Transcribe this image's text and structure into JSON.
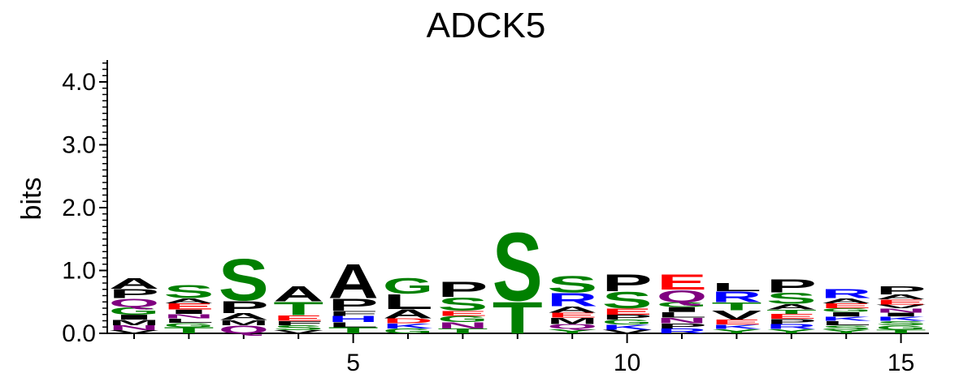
{
  "chart_data": {
    "type": "sequence-logo",
    "title": "ADCK5",
    "ylabel": "bits",
    "xlabel": "",
    "ylim": [
      0,
      4.3
    ],
    "yticks": [
      0.0,
      1.0,
      2.0,
      3.0,
      4.0
    ],
    "ytick_labels": [
      "0.0",
      "1.0",
      "2.0",
      "3.0",
      "4.0"
    ],
    "xticks": [
      5,
      10,
      15
    ],
    "xtick_labels": [
      "5",
      "10",
      "15"
    ],
    "x_range": [
      0.5,
      16.0
    ],
    "colors": {
      "A": "#000000",
      "L": "#000000",
      "P": "#000000",
      "V": "#000000",
      "I": "#000000",
      "M": "#000000",
      "F": "#000000",
      "W": "#000000",
      "S": "#008000",
      "T": "#008000",
      "G": "#008000",
      "Y": "#008000",
      "C": "#008000",
      "R": "#0000ff",
      "K": "#0000ff",
      "H": "#0000ff",
      "D": "#ff0000",
      "E": "#ff0000",
      "N": "#800080",
      "Q": "#800080"
    },
    "positions": [
      {
        "pos": 1,
        "letters": [
          [
            "V",
            0.05
          ],
          [
            "N",
            0.08
          ],
          [
            "M",
            0.09
          ],
          [
            "I",
            0.08
          ],
          [
            "G",
            0.12
          ],
          [
            "Q",
            0.14
          ],
          [
            "P",
            0.15
          ],
          [
            "A",
            0.17
          ]
        ]
      },
      {
        "pos": 2,
        "letters": [
          [
            "T",
            0.1
          ],
          [
            "G",
            0.07
          ],
          [
            "L",
            0.07
          ],
          [
            "N",
            0.07
          ],
          [
            "I",
            0.07
          ],
          [
            "E",
            0.1
          ],
          [
            "A",
            0.08
          ],
          [
            "S",
            0.22
          ]
        ]
      },
      {
        "pos": 3,
        "letters": [
          [
            "Q",
            0.13
          ],
          [
            "M",
            0.08
          ],
          [
            "A",
            0.11
          ],
          [
            "P",
            0.2
          ],
          [
            "S",
            0.69
          ]
        ]
      },
      {
        "pos": 4,
        "letters": [
          [
            "V",
            0.05
          ],
          [
            "S",
            0.08
          ],
          [
            "F",
            0.07
          ],
          [
            "E",
            0.09
          ],
          [
            "T",
            0.22
          ],
          [
            "A",
            0.25
          ]
        ]
      },
      {
        "pos": 5,
        "letters": [
          [
            "T",
            0.1
          ],
          [
            "L",
            0.08
          ],
          [
            "H",
            0.1
          ],
          [
            "F",
            0.08
          ],
          [
            "P",
            0.2
          ],
          [
            "A",
            0.57
          ]
        ]
      },
      {
        "pos": 6,
        "letters": [
          [
            "G",
            0.08
          ],
          [
            "K",
            0.08
          ],
          [
            "D",
            0.08
          ],
          [
            "A",
            0.15
          ],
          [
            "L",
            0.24
          ],
          [
            "G",
            0.26
          ]
        ]
      },
      {
        "pos": 7,
        "letters": [
          [
            "T",
            0.08
          ],
          [
            "N",
            0.1
          ],
          [
            "G",
            0.1
          ],
          [
            "E",
            0.08
          ],
          [
            "S",
            0.22
          ],
          [
            "P",
            0.25
          ]
        ]
      },
      {
        "pos": 8,
        "letters": [
          [
            "T",
            0.52
          ],
          [
            "S",
            1.13
          ]
        ]
      },
      {
        "pos": 9,
        "letters": [
          [
            "Y",
            0.07
          ],
          [
            "Q",
            0.08
          ],
          [
            "M",
            0.1
          ],
          [
            "E",
            0.08
          ],
          [
            "A",
            0.1
          ],
          [
            "R",
            0.22
          ],
          [
            "S",
            0.27
          ]
        ]
      },
      {
        "pos": 10,
        "letters": [
          [
            "V",
            0.06
          ],
          [
            "K",
            0.08
          ],
          [
            "G",
            0.08
          ],
          [
            "P",
            0.08
          ],
          [
            "E",
            0.1
          ],
          [
            "S",
            0.27
          ],
          [
            "P",
            0.28
          ]
        ]
      },
      {
        "pos": 11,
        "letters": [
          [
            "R",
            0.08
          ],
          [
            "P",
            0.08
          ],
          [
            "N",
            0.09
          ],
          [
            "L",
            0.09
          ],
          [
            "I",
            0.08
          ],
          [
            "G",
            0.08
          ],
          [
            "Q",
            0.2
          ],
          [
            "E",
            0.25
          ]
        ]
      },
      {
        "pos": 12,
        "letters": [
          [
            "Y",
            0.07
          ],
          [
            "K",
            0.07
          ],
          [
            "E",
            0.08
          ],
          [
            "V",
            0.15
          ],
          [
            "T",
            0.13
          ],
          [
            "R",
            0.17
          ],
          [
            "L",
            0.14
          ]
        ]
      },
      {
        "pos": 13,
        "letters": [
          [
            "Y",
            0.07
          ],
          [
            "R",
            0.08
          ],
          [
            "P",
            0.08
          ],
          [
            "E",
            0.08
          ],
          [
            "T",
            0.07
          ],
          [
            "A",
            0.09
          ],
          [
            "S",
            0.18
          ],
          [
            "P",
            0.22
          ]
        ]
      },
      {
        "pos": 14,
        "letters": [
          [
            "Y",
            0.06
          ],
          [
            "S",
            0.07
          ],
          [
            "L",
            0.07
          ],
          [
            "K",
            0.07
          ],
          [
            "I",
            0.07
          ],
          [
            "G",
            0.06
          ],
          [
            "E",
            0.08
          ],
          [
            "A",
            0.08
          ],
          [
            "R",
            0.15
          ]
        ]
      },
      {
        "pos": 15,
        "letters": [
          [
            "T",
            0.06
          ],
          [
            "G",
            0.07
          ],
          [
            "S",
            0.07
          ],
          [
            "K",
            0.07
          ],
          [
            "I",
            0.06
          ],
          [
            "N",
            0.07
          ],
          [
            "V",
            0.06
          ],
          [
            "E",
            0.08
          ],
          [
            "A",
            0.08
          ],
          [
            "P",
            0.14
          ]
        ]
      }
    ]
  }
}
